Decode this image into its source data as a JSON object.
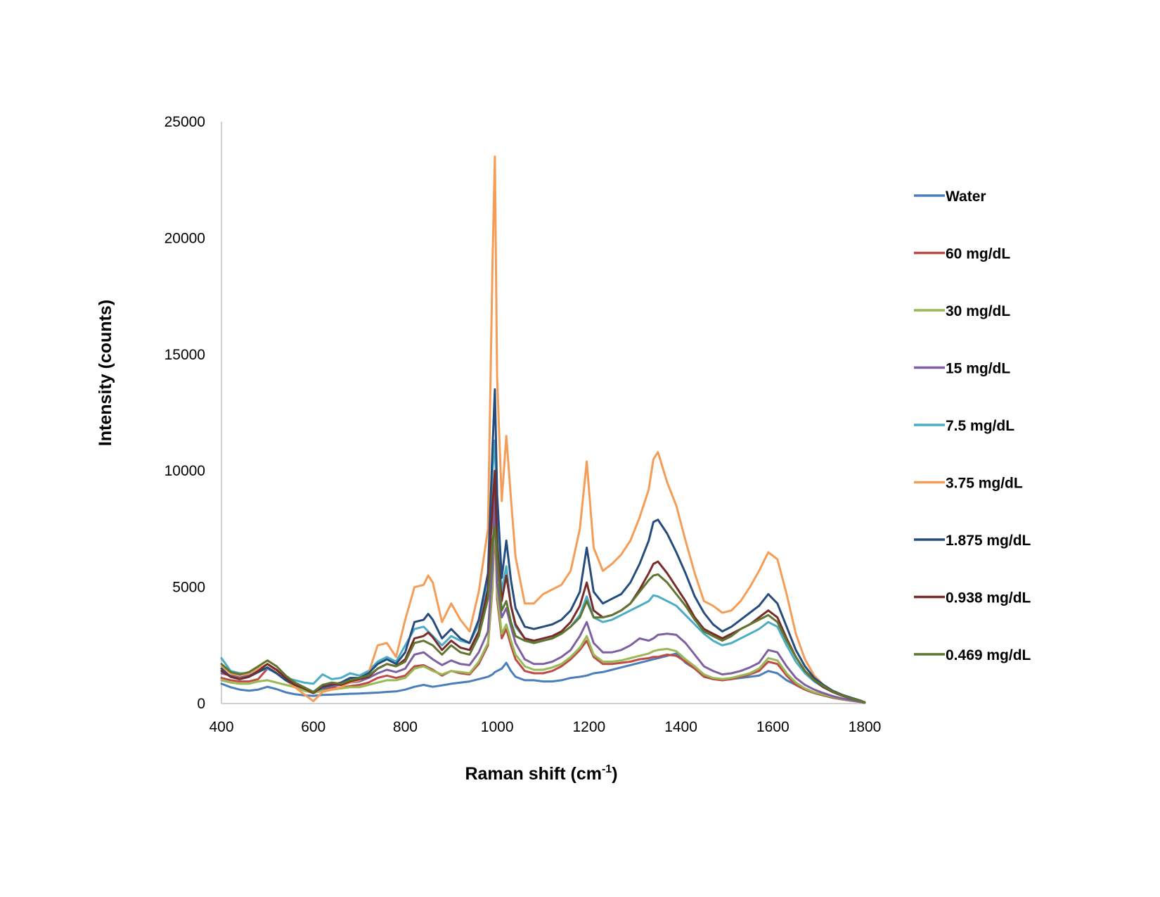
{
  "chart_data": {
    "type": "line",
    "title": "",
    "xlabel": "Raman shift (cm",
    "xlabel_sup": "-1",
    "xlabel_close": ")",
    "ylabel": "Intensity (counts)",
    "xlim": [
      400,
      1800
    ],
    "ylim": [
      0,
      25000
    ],
    "xticks": [
      400,
      600,
      800,
      1000,
      1200,
      1400,
      1600,
      1800
    ],
    "yticks": [
      0,
      5000,
      10000,
      15000,
      20000,
      25000
    ],
    "xtick_labels": [
      "400",
      "600",
      "800",
      "1000",
      "1200",
      "1400",
      "1600",
      "1800"
    ],
    "ytick_labels": [
      "0",
      "5000",
      "10000",
      "15000",
      "20000",
      "25000"
    ],
    "grid": false,
    "legend_position": "right",
    "x": [
      400,
      420,
      440,
      460,
      480,
      500,
      520,
      540,
      560,
      580,
      600,
      620,
      640,
      660,
      680,
      700,
      720,
      740,
      760,
      780,
      800,
      820,
      840,
      850,
      860,
      880,
      900,
      920,
      940,
      960,
      980,
      990,
      995,
      1000,
      1010,
      1020,
      1030,
      1040,
      1060,
      1080,
      1100,
      1120,
      1140,
      1160,
      1180,
      1195,
      1210,
      1230,
      1250,
      1270,
      1290,
      1310,
      1330,
      1340,
      1350,
      1370,
      1390,
      1410,
      1430,
      1450,
      1470,
      1490,
      1510,
      1530,
      1550,
      1570,
      1590,
      1610,
      1630,
      1650,
      1670,
      1690,
      1710,
      1730,
      1750,
      1770,
      1790,
      1800
    ],
    "series": [
      {
        "name": "Water",
        "color": "#4a7ebb",
        "values": [
          850,
          700,
          600,
          550,
          600,
          720,
          620,
          480,
          400,
          350,
          330,
          370,
          380,
          400,
          420,
          430,
          450,
          470,
          500,
          520,
          600,
          720,
          800,
          760,
          720,
          780,
          850,
          900,
          950,
          1050,
          1150,
          1250,
          1350,
          1400,
          1500,
          1750,
          1400,
          1150,
          1000,
          1000,
          950,
          950,
          1000,
          1100,
          1150,
          1200,
          1300,
          1350,
          1450,
          1550,
          1650,
          1750,
          1850,
          1900,
          1950,
          2050,
          2150,
          1750,
          1500,
          1200,
          1050,
          1000,
          1050,
          1100,
          1150,
          1200,
          1400,
          1300,
          1000,
          800,
          600,
          450,
          350,
          250,
          180,
          120,
          70,
          30
        ]
      },
      {
        "name": "60 mg/dL",
        "color": "#be4b48",
        "values": [
          1100,
          1000,
          950,
          950,
          1050,
          1500,
          1300,
          1000,
          800,
          600,
          450,
          600,
          700,
          650,
          750,
          800,
          900,
          1100,
          1200,
          1100,
          1200,
          1600,
          1650,
          1550,
          1450,
          1200,
          1400,
          1300,
          1250,
          1700,
          2500,
          5000,
          8000,
          4500,
          2800,
          3200,
          2500,
          1900,
          1400,
          1300,
          1300,
          1400,
          1600,
          1900,
          2300,
          2700,
          2000,
          1700,
          1700,
          1750,
          1800,
          1900,
          1950,
          2000,
          2000,
          2100,
          2050,
          1800,
          1500,
          1150,
          1050,
          1000,
          1050,
          1150,
          1250,
          1400,
          1800,
          1700,
          1200,
          800,
          600,
          450,
          350,
          250,
          180,
          120,
          70,
          30
        ]
      },
      {
        "name": "30 mg/dL",
        "color": "#98b954",
        "values": [
          1000,
          900,
          850,
          850,
          950,
          1000,
          900,
          800,
          700,
          550,
          450,
          550,
          600,
          650,
          700,
          700,
          800,
          900,
          1000,
          1000,
          1100,
          1500,
          1600,
          1500,
          1400,
          1250,
          1400,
          1350,
          1300,
          1800,
          2600,
          5200,
          8500,
          4800,
          3000,
          3400,
          2700,
          2100,
          1600,
          1450,
          1450,
          1550,
          1700,
          2000,
          2400,
          2900,
          2100,
          1800,
          1800,
          1850,
          1950,
          2050,
          2150,
          2250,
          2300,
          2350,
          2250,
          1900,
          1600,
          1250,
          1100,
          1050,
          1100,
          1200,
          1300,
          1500,
          1950,
          1850,
          1300,
          900,
          650,
          480,
          380,
          280,
          200,
          130,
          75,
          30
        ]
      },
      {
        "name": "15 mg/dL",
        "color": "#7d60a0",
        "values": [
          1300,
          1200,
          1150,
          1200,
          1350,
          1550,
          1300,
          1000,
          800,
          650,
          500,
          650,
          750,
          800,
          900,
          950,
          1100,
          1300,
          1450,
          1350,
          1500,
          2100,
          2200,
          2050,
          1900,
          1650,
          1850,
          1700,
          1650,
          2200,
          3100,
          6000,
          9500,
          5200,
          3700,
          4100,
          3300,
          2600,
          1900,
          1700,
          1700,
          1800,
          2000,
          2300,
          2900,
          3500,
          2600,
          2200,
          2200,
          2300,
          2500,
          2800,
          2700,
          2800,
          2950,
          3000,
          2950,
          2600,
          2100,
          1600,
          1400,
          1250,
          1300,
          1400,
          1550,
          1750,
          2300,
          2200,
          1600,
          1100,
          800,
          600,
          450,
          320,
          220,
          150,
          80,
          35
        ]
      },
      {
        "name": "7.5 mg/dL",
        "color": "#4bacc6",
        "values": [
          1950,
          1400,
          1300,
          1300,
          1400,
          1500,
          1300,
          1100,
          1000,
          900,
          850,
          1250,
          1050,
          1100,
          1300,
          1200,
          1400,
          1800,
          2000,
          1800,
          2500,
          3200,
          3300,
          3100,
          2900,
          2500,
          2900,
          2700,
          2600,
          3400,
          5200,
          10000,
          11300,
          8000,
          4800,
          5900,
          4200,
          3300,
          2800,
          2600,
          2700,
          2800,
          3000,
          3300,
          3800,
          4600,
          3700,
          3500,
          3600,
          3800,
          4000,
          4200,
          4400,
          4650,
          4600,
          4400,
          4200,
          3800,
          3400,
          3000,
          2700,
          2500,
          2600,
          2800,
          3000,
          3200,
          3500,
          3300,
          2500,
          1800,
          1300,
          950,
          700,
          500,
          350,
          220,
          120,
          50
        ]
      },
      {
        "name": "3.75 mg/dL",
        "color": "#f59d56",
        "values": [
          1600,
          1300,
          1200,
          1300,
          1500,
          1700,
          1400,
          1000,
          700,
          400,
          100,
          500,
          600,
          700,
          900,
          1000,
          1300,
          2500,
          2600,
          2000,
          3600,
          5000,
          5100,
          5500,
          5200,
          3500,
          4300,
          3600,
          3100,
          4800,
          7500,
          19000,
          23500,
          14000,
          8700,
          11500,
          8800,
          6300,
          4300,
          4300,
          4700,
          4900,
          5100,
          5700,
          7500,
          10400,
          6700,
          5700,
          6000,
          6400,
          7000,
          8000,
          9200,
          10500,
          10800,
          9500,
          8500,
          7000,
          5600,
          4400,
          4200,
          3900,
          4000,
          4400,
          5000,
          5700,
          6500,
          6200,
          4700,
          3000,
          1900,
          1200,
          800,
          550,
          380,
          250,
          130,
          50
        ]
      },
      {
        "name": "1.875 mg/dL",
        "color": "#254c7d",
        "values": [
          1500,
          1150,
          1050,
          1150,
          1350,
          1550,
          1300,
          1000,
          800,
          650,
          500,
          700,
          800,
          900,
          1100,
          1100,
          1300,
          1700,
          1900,
          1700,
          2200,
          3500,
          3600,
          3850,
          3600,
          2800,
          3200,
          2800,
          2600,
          3600,
          5600,
          11000,
          13500,
          9000,
          5400,
          7000,
          5300,
          4100,
          3300,
          3200,
          3300,
          3400,
          3600,
          4000,
          4800,
          6700,
          4800,
          4300,
          4500,
          4700,
          5200,
          6000,
          7000,
          7800,
          7900,
          7300,
          6500,
          5600,
          4600,
          3900,
          3400,
          3100,
          3300,
          3600,
          3900,
          4200,
          4700,
          4300,
          3300,
          2300,
          1600,
          1100,
          800,
          550,
          380,
          250,
          130,
          50
        ]
      },
      {
        "name": "0.938 mg/dL",
        "color": "#772c2a",
        "values": [
          1400,
          1150,
          1050,
          1150,
          1400,
          1700,
          1450,
          1100,
          800,
          650,
          450,
          750,
          850,
          800,
          950,
          1050,
          1150,
          1500,
          1700,
          1600,
          1900,
          2800,
          2900,
          3050,
          2850,
          2300,
          2700,
          2400,
          2300,
          3100,
          4900,
          8500,
          10000,
          6800,
          4400,
          5500,
          4200,
          3400,
          2800,
          2700,
          2800,
          2900,
          3100,
          3500,
          4200,
          5200,
          4000,
          3700,
          3800,
          4000,
          4300,
          4900,
          5600,
          6000,
          6100,
          5600,
          5000,
          4400,
          3700,
          3200,
          3000,
          2800,
          3000,
          3200,
          3400,
          3700,
          4000,
          3700,
          2800,
          2000,
          1400,
          1000,
          700,
          500,
          340,
          220,
          120,
          45
        ]
      },
      {
        "name": "0.469 mg/dL",
        "color": "#5f7530",
        "values": [
          1700,
          1350,
          1250,
          1350,
          1600,
          1850,
          1600,
          1200,
          900,
          700,
          500,
          800,
          900,
          850,
          1000,
          1100,
          1200,
          1500,
          1700,
          1600,
          1800,
          2600,
          2700,
          2600,
          2500,
          2100,
          2500,
          2200,
          2100,
          2900,
          4500,
          7000,
          7600,
          6300,
          4000,
          4400,
          3500,
          2900,
          2700,
          2600,
          2700,
          2800,
          3000,
          3300,
          3700,
          4400,
          3700,
          3700,
          3800,
          4000,
          4300,
          4800,
          5300,
          5500,
          5550,
          5200,
          4700,
          4200,
          3600,
          3100,
          2900,
          2700,
          2900,
          3200,
          3400,
          3600,
          3800,
          3500,
          2700,
          2000,
          1400,
          1000,
          750,
          520,
          360,
          230,
          120,
          45
        ]
      }
    ]
  }
}
